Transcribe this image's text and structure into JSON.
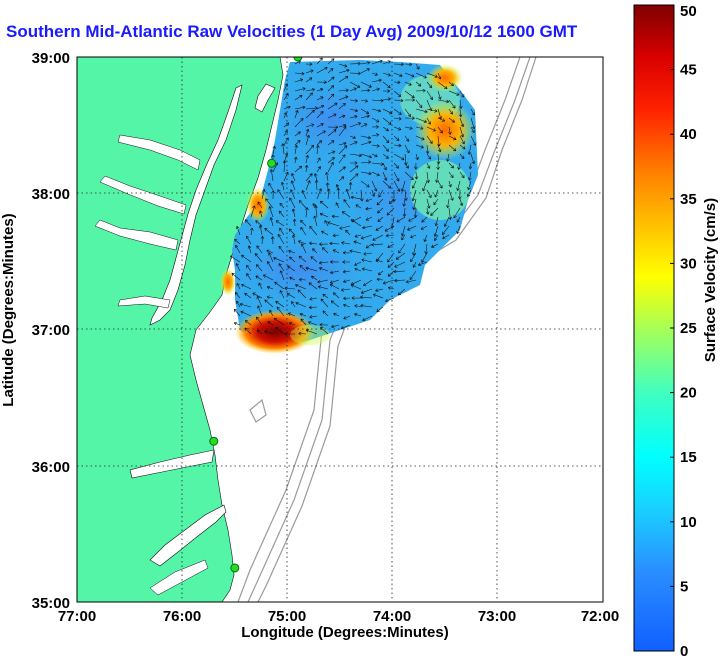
{
  "title": "Southern Mid-Atlantic Raw Velocities (1 Day Avg) 2009/10/12 1600 GMT",
  "axes": {
    "xlabel": "Longitude (Degrees:Minutes)",
    "ylabel": "Latitude (Degrees:Minutes)",
    "x_ticks": [
      "77:00",
      "76:00",
      "75:00",
      "74:00",
      "73:00",
      "72:00"
    ],
    "y_ticks": [
      "35:00",
      "36:00",
      "37:00",
      "38:00",
      "39:00"
    ]
  },
  "colorbar": {
    "label": "Surface Velocity (cm/s)",
    "ticks": [
      "0",
      "5",
      "10",
      "15",
      "20",
      "25",
      "30",
      "35",
      "40",
      "45",
      "50"
    ],
    "range": [
      0,
      50
    ],
    "colormap": "jet"
  },
  "colors": {
    "land": "#55f5a8",
    "water": "#ffffff",
    "title": "#1a1aff",
    "bathymetry": "#9a9a9a",
    "site_marker": "#22dd22",
    "velocity_field": "#33aaee",
    "high_velocity": "#cc2200"
  },
  "chart_data": {
    "type": "heatmap",
    "map_extent": {
      "lon": [
        -77,
        -72
      ],
      "lat": [
        35,
        39
      ]
    },
    "grid": true,
    "high_velocity_zones": [
      {
        "lon": -75.1,
        "lat": 36.95,
        "speed_cm_s": 48
      },
      {
        "lon": -73.4,
        "lat": 38.5,
        "speed_cm_s": 32
      },
      {
        "lon": -73.4,
        "lat": 38.8,
        "speed_cm_s": 30
      },
      {
        "lon": -75.4,
        "lat": 37.9,
        "speed_cm_s": 32
      },
      {
        "lon": -75.6,
        "lat": 37.4,
        "speed_cm_s": 28
      }
    ],
    "typical_speed_cm_s": 10,
    "radar_sites": [
      {
        "lon": -74.9,
        "lat": 39.0
      },
      {
        "lon": -75.15,
        "lat": 38.22
      },
      {
        "lon": -75.7,
        "lat": 36.18
      },
      {
        "lon": -75.5,
        "lat": 35.25
      }
    ]
  }
}
